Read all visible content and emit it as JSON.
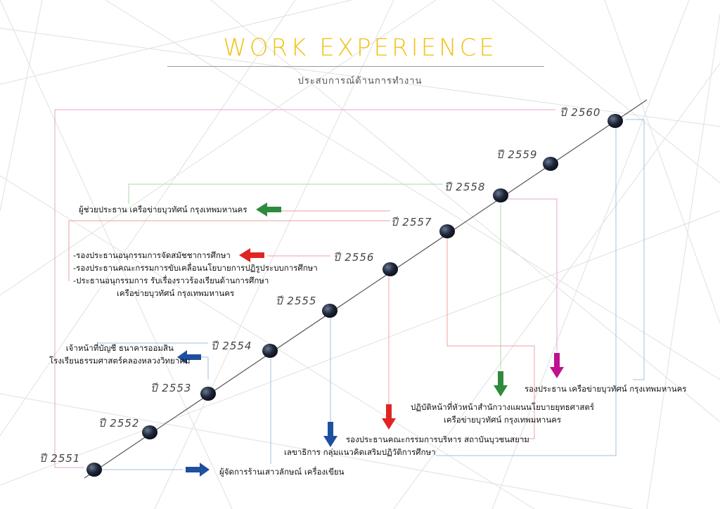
{
  "header": {
    "title": "WORK EXPERIENCE",
    "subtitle": "ประสบการณ์ด้านการทำงาน"
  },
  "timeline": {
    "years": [
      "ปี 2551",
      "ปี 2552",
      "ปี 2553",
      "ปี 2554",
      "ปี 2555",
      "ปี 2556",
      "ปี 2557",
      "ปี 2558",
      "ปี 2559",
      "ปี 2560"
    ]
  },
  "jobs": {
    "y2551": "ผู้จัดการร้านเสาวลักษณ์ เครื่องเขียน",
    "y2553_line1": "เจ้าหน้าที่บัญชี ธนาคารออมสิน",
    "y2553_line2": "โรงเรียนธรรมศาสตร์คลองหลวงวิทยาคม",
    "y2555": "เลขาธิการ กลุ่มแนวคิดเสริมปฏิวัติการศึกษา",
    "y2556_line1": "-รองประธานอนุกรรมการจัดสมัชชาการศึกษา",
    "y2556_line2": "-รองประธานคณะกรรมการขับเคลื่อนนโยบายการปฏิรูประบบการศึกษา",
    "y2556_line3": "-ประธานอนุกรรมการ รับเรื่องราวร้องเรียนด้านการศึกษา",
    "y2556_line4": "เครือข่ายบุวทัศน์ กรุงเทพมหานคร",
    "y2556b": "รองประธานคณะกรรมการบริหาร สถาบันบุวชนสยาม",
    "y2557_line1": "ปฏิบัติหน้าที่หัวหน้าสำนักวางแผนนโยบายยุทธศาสตร์",
    "y2557_line2": "เครือข่ายบุวทัศน์ กรุงเทพมหานคร",
    "y2558": "ผู้ช่วยประธาน เครือข่ายบุวทัศน์ กรุงเทพมหานคร",
    "y2559": "รองประธาน เครือข่ายบุวทัศน์ กรุงเทพมหานคร"
  },
  "colors": {
    "title": "#f2c21a",
    "blue": "#1f4fa0",
    "green": "#2e8b3e",
    "red": "#e02424",
    "magenta": "#c0108f",
    "pink_line": "#e8a0d0",
    "node": "#1c2230"
  }
}
